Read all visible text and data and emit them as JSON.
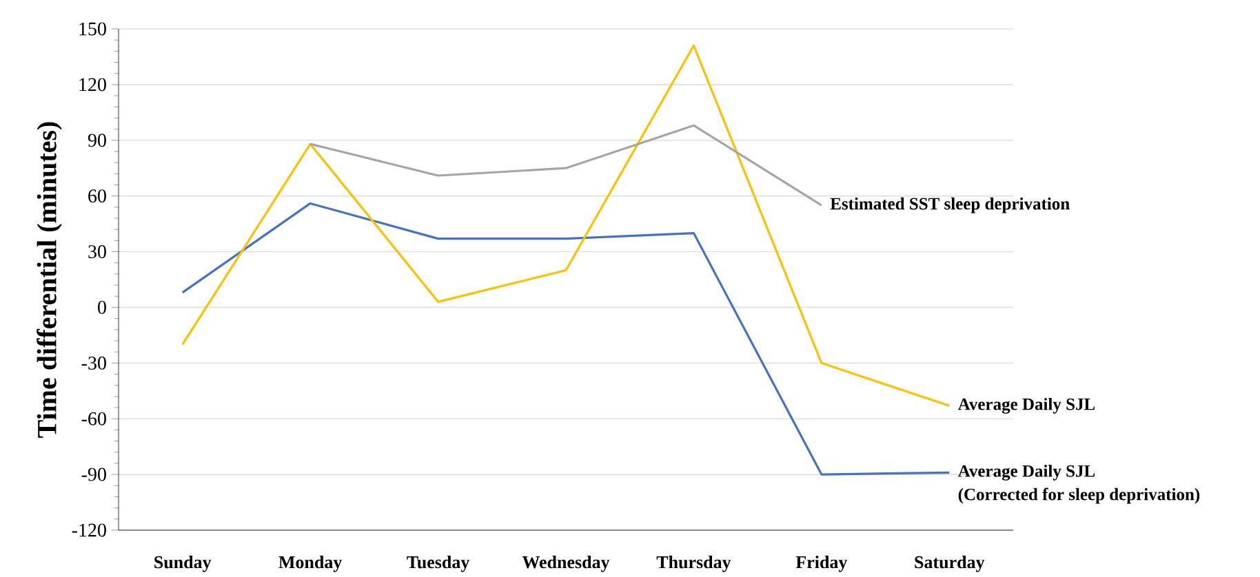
{
  "chart_data": {
    "type": "line",
    "ylabel": "Time differential (minutes)",
    "categories": [
      "Sunday",
      "Monday",
      "Tuesday",
      "Wednesday",
      "Thursday",
      "Friday",
      "Saturday"
    ],
    "series": [
      {
        "name": "Average Daily SJL",
        "color": "#4472c4",
        "values": [
          8,
          56,
          37,
          37,
          40,
          -90,
          -89
        ]
      },
      {
        "name": "Average Daily SJL",
        "color": "#ffc000",
        "values": [
          -20,
          88,
          3,
          20,
          141,
          -30,
          -53
        ]
      },
      {
        "name": "Estimated SST sleep deprivation",
        "color": "#a5a5a5",
        "values": [
          null,
          88,
          71,
          75,
          98,
          55,
          null
        ]
      }
    ],
    "annotations": [
      "(Corrected for sleep deprivation)"
    ],
    "ylim": [
      -120,
      150
    ],
    "yticks": [
      -120,
      -90,
      -60,
      -30,
      0,
      30,
      60,
      90,
      120,
      150
    ],
    "grid": "y",
    "legend": false,
    "marker": "none",
    "line_style": "solid"
  }
}
